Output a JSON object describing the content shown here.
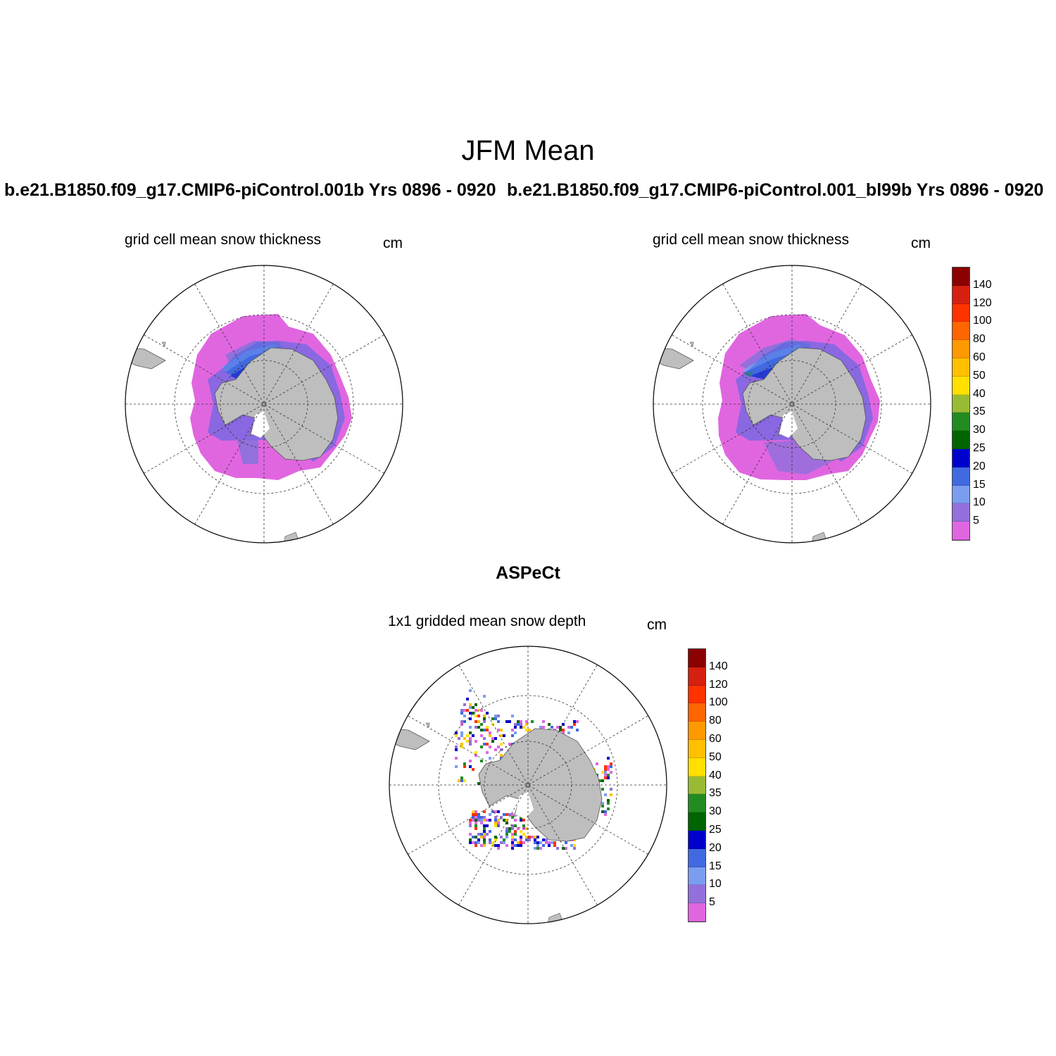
{
  "figure": {
    "title": "JFM Mean",
    "units": "cm",
    "legend_levels": [
      "140",
      "120",
      "100",
      "80",
      "60",
      "50",
      "40",
      "35",
      "30",
      "25",
      "20",
      "15",
      "10",
      "5"
    ],
    "legend_colors": [
      "#8b0000",
      "#d62010",
      "#ff3300",
      "#ff6600",
      "#ff9900",
      "#ffc000",
      "#ffe000",
      "#99bb33",
      "#228b22",
      "#006400",
      "#0000cd",
      "#4169e1",
      "#7b9df0",
      "#9370db",
      "#e066e0"
    ]
  },
  "panels": [
    {
      "case": "b.e21.B1850.f09_g17.CMIP6-piControl.001b  Yrs 0896 - 0920",
      "field": "grid cell mean snow thickness",
      "units": "cm"
    },
    {
      "case": "b.e21.B1850.f09_g17.CMIP6-piControl.001_bl99b  Yrs 0896 - 0920",
      "field": "grid cell mean snow thickness",
      "units": "cm"
    },
    {
      "case": "ASPeCt",
      "field": "1x1 gridded mean snow depth",
      "units": "cm"
    }
  ]
}
